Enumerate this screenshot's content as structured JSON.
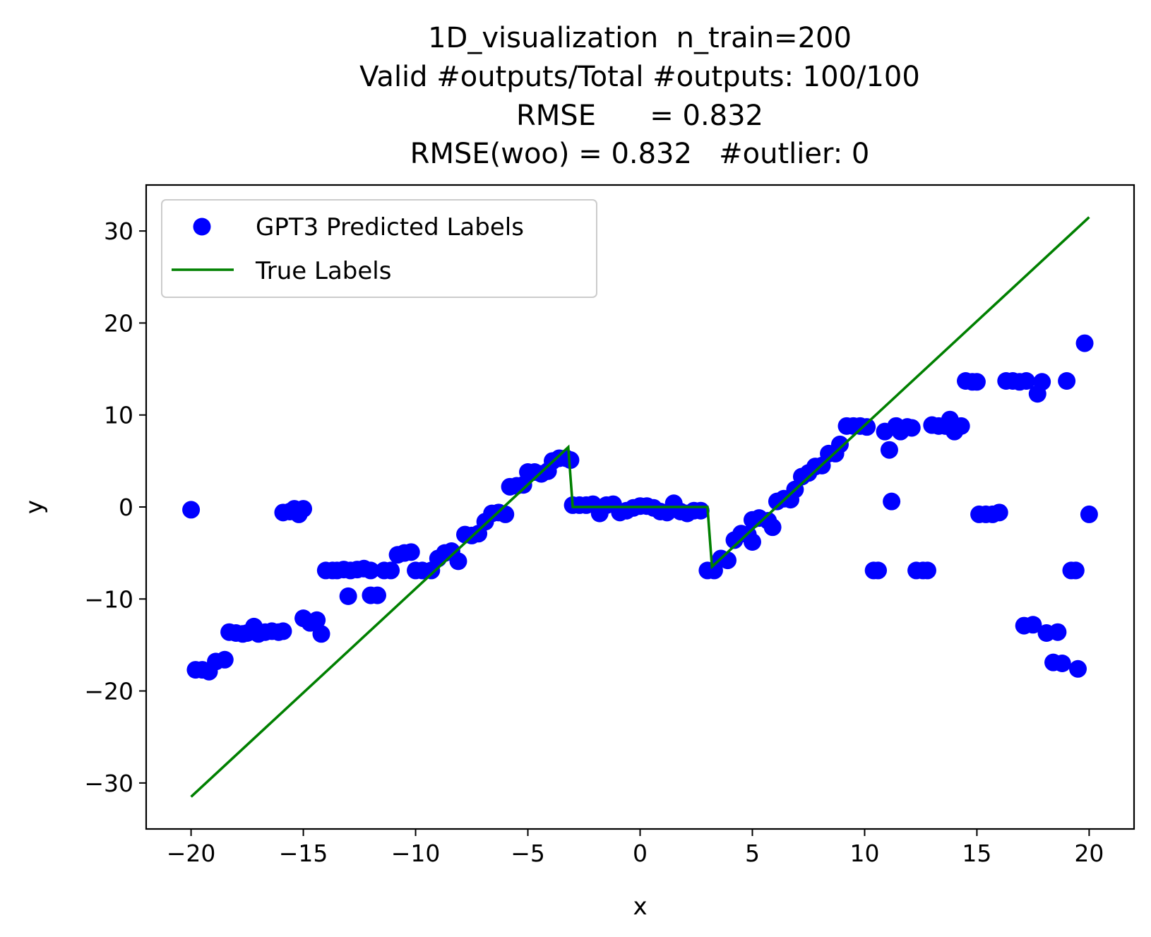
{
  "chart_data": {
    "type": "scatter",
    "title_lines": [
      "1D_visualization  n_train=200",
      "Valid #outputs/Total #outputs: 100/100",
      "RMSE      = 0.832",
      "RMSE(woo) = 0.832   #outlier: 0"
    ],
    "xlabel": "x",
    "ylabel": "y",
    "xlim": [
      -22,
      22
    ],
    "ylim": [
      -35,
      35
    ],
    "x_ticks": [
      -20,
      -15,
      -10,
      -5,
      0,
      5,
      10,
      15,
      20
    ],
    "y_ticks": [
      -30,
      -20,
      -10,
      0,
      10,
      20,
      30
    ],
    "x_tick_labels": [
      "−20",
      "−15",
      "−10",
      "−5",
      "0",
      "5",
      "10",
      "15",
      "20"
    ],
    "y_tick_labels": [
      "−30",
      "−20",
      "−10",
      "0",
      "10",
      "20",
      "30"
    ],
    "grid": false,
    "legend": {
      "placement": "upper-left",
      "entries": [
        "GPT3 Predicted Labels",
        "True Labels"
      ]
    },
    "colors": {
      "predicted": "#0000ff",
      "true": "#008000"
    },
    "series": [
      {
        "name": "GPT3 Predicted Labels",
        "kind": "scatter",
        "points": [
          [
            -20,
            -0.3
          ],
          [
            -19.8,
            -17.7
          ],
          [
            -19.5,
            -17.7
          ],
          [
            -19.2,
            -17.9
          ],
          [
            -18.9,
            -16.8
          ],
          [
            -18.5,
            -16.6
          ],
          [
            -18.3,
            -13.6
          ],
          [
            -18.0,
            -13.7
          ],
          [
            -17.7,
            -13.8
          ],
          [
            -17.5,
            -13.7
          ],
          [
            -17.2,
            -13.0
          ],
          [
            -17.0,
            -13.8
          ],
          [
            -16.7,
            -13.6
          ],
          [
            -16.4,
            -13.5
          ],
          [
            -16.1,
            -13.6
          ],
          [
            -15.9,
            -13.5
          ],
          [
            -15.9,
            -0.6
          ],
          [
            -15.6,
            -0.5
          ],
          [
            -15.4,
            -0.2
          ],
          [
            -15.2,
            -0.8
          ],
          [
            -15.0,
            -0.2
          ],
          [
            -15.0,
            -12.1
          ],
          [
            -14.7,
            -12.6
          ],
          [
            -14.4,
            -12.3
          ],
          [
            -14.2,
            -13.8
          ],
          [
            -14.0,
            -6.9
          ],
          [
            -13.7,
            -6.9
          ],
          [
            -13.5,
            -6.9
          ],
          [
            -13.2,
            -6.8
          ],
          [
            -13.0,
            -9.7
          ],
          [
            -12.9,
            -6.9
          ],
          [
            -12.6,
            -6.8
          ],
          [
            -12.3,
            -6.7
          ],
          [
            -12.0,
            -6.9
          ],
          [
            -12.0,
            -9.6
          ],
          [
            -11.7,
            -9.6
          ],
          [
            -11.4,
            -6.9
          ],
          [
            -11.1,
            -6.9
          ],
          [
            -10.8,
            -5.2
          ],
          [
            -10.5,
            -5.0
          ],
          [
            -10.2,
            -4.9
          ],
          [
            -10.0,
            -6.9
          ],
          [
            -9.7,
            -6.9
          ],
          [
            -9.3,
            -6.9
          ],
          [
            -9.0,
            -5.6
          ],
          [
            -8.7,
            -5.0
          ],
          [
            -8.4,
            -4.8
          ],
          [
            -8.1,
            -5.9
          ],
          [
            -7.8,
            -3.0
          ],
          [
            -7.5,
            -3.1
          ],
          [
            -7.2,
            -2.9
          ],
          [
            -6.9,
            -1.6
          ],
          [
            -6.6,
            -0.7
          ],
          [
            -6.3,
            -0.6
          ],
          [
            -6.0,
            -0.8
          ],
          [
            -5.8,
            2.2
          ],
          [
            -5.5,
            2.3
          ],
          [
            -5.2,
            2.4
          ],
          [
            -5.0,
            3.8
          ],
          [
            -4.7,
            3.8
          ],
          [
            -4.4,
            3.6
          ],
          [
            -4.1,
            3.9
          ],
          [
            -3.9,
            5.0
          ],
          [
            -3.6,
            5.3
          ],
          [
            -3.3,
            5.3
          ],
          [
            -3.1,
            5.1
          ],
          [
            -3.0,
            0.2
          ],
          [
            -2.7,
            0.2
          ],
          [
            -2.4,
            0.2
          ],
          [
            -2.1,
            0.3
          ],
          [
            -1.8,
            -0.7
          ],
          [
            -1.5,
            0.2
          ],
          [
            -1.2,
            0.3
          ],
          [
            -0.9,
            -0.6
          ],
          [
            -0.6,
            -0.4
          ],
          [
            -0.3,
            -0.1
          ],
          [
            0.0,
            0.1
          ],
          [
            0.3,
            0.1
          ],
          [
            0.6,
            -0.1
          ],
          [
            0.9,
            -0.5
          ],
          [
            1.2,
            -0.6
          ],
          [
            1.5,
            0.4
          ],
          [
            1.8,
            -0.5
          ],
          [
            2.1,
            -0.7
          ],
          [
            2.4,
            -0.4
          ],
          [
            2.7,
            -0.4
          ],
          [
            3.0,
            -6.9
          ],
          [
            3.3,
            -6.9
          ],
          [
            3.6,
            -5.6
          ],
          [
            3.9,
            -5.8
          ],
          [
            4.2,
            -3.6
          ],
          [
            4.5,
            -2.9
          ],
          [
            4.8,
            -3.0
          ],
          [
            5.0,
            -3.8
          ],
          [
            5.0,
            -1.4
          ],
          [
            5.3,
            -1.2
          ],
          [
            5.7,
            -1.5
          ],
          [
            5.9,
            -2.2
          ],
          [
            6.1,
            0.6
          ],
          [
            6.4,
            0.9
          ],
          [
            6.7,
            0.8
          ],
          [
            6.9,
            1.9
          ],
          [
            7.2,
            3.3
          ],
          [
            7.5,
            3.7
          ],
          [
            7.8,
            4.4
          ],
          [
            8.1,
            4.5
          ],
          [
            8.4,
            5.8
          ],
          [
            8.7,
            5.8
          ],
          [
            8.9,
            6.8
          ],
          [
            9.2,
            8.8
          ],
          [
            9.5,
            8.8
          ],
          [
            9.8,
            8.8
          ],
          [
            10.1,
            8.7
          ],
          [
            10.4,
            -6.9
          ],
          [
            10.6,
            -6.9
          ],
          [
            10.9,
            8.2
          ],
          [
            11.1,
            6.2
          ],
          [
            11.2,
            0.6
          ],
          [
            11.4,
            8.8
          ],
          [
            11.6,
            8.2
          ],
          [
            11.9,
            8.7
          ],
          [
            12.1,
            8.6
          ],
          [
            12.3,
            -6.9
          ],
          [
            12.6,
            -6.9
          ],
          [
            12.8,
            -6.9
          ],
          [
            13.0,
            8.9
          ],
          [
            13.3,
            8.8
          ],
          [
            13.6,
            8.8
          ],
          [
            13.8,
            9.5
          ],
          [
            14.0,
            8.2
          ],
          [
            14.3,
            8.8
          ],
          [
            14.5,
            13.7
          ],
          [
            14.8,
            13.6
          ],
          [
            15.0,
            13.6
          ],
          [
            15.1,
            -0.8
          ],
          [
            15.4,
            -0.8
          ],
          [
            15.7,
            -0.8
          ],
          [
            16.0,
            -0.6
          ],
          [
            16.3,
            13.7
          ],
          [
            16.6,
            13.7
          ],
          [
            16.9,
            13.6
          ],
          [
            17.1,
            -12.9
          ],
          [
            17.2,
            13.7
          ],
          [
            17.5,
            -12.8
          ],
          [
            17.7,
            12.3
          ],
          [
            17.9,
            13.6
          ],
          [
            18.1,
            -13.7
          ],
          [
            18.4,
            -16.9
          ],
          [
            18.6,
            -13.6
          ],
          [
            18.8,
            -17.0
          ],
          [
            19.0,
            13.7
          ],
          [
            19.2,
            -6.9
          ],
          [
            19.4,
            -6.9
          ],
          [
            19.5,
            -17.6
          ],
          [
            19.8,
            17.8
          ],
          [
            20.0,
            -0.8
          ]
        ]
      },
      {
        "name": "True Labels",
        "kind": "line",
        "points": [
          [
            -20,
            -31.5
          ],
          [
            -3.2,
            6.5
          ],
          [
            -3.0,
            0
          ],
          [
            3.0,
            0
          ],
          [
            3.2,
            -6.5
          ],
          [
            20,
            31.5
          ]
        ]
      }
    ]
  }
}
